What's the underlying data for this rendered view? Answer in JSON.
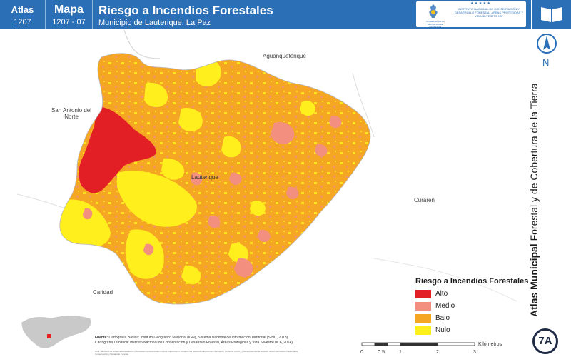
{
  "header": {
    "atlas_label": "Atlas",
    "atlas_number": "1207",
    "mapa_label": "Mapa",
    "mapa_number": "1207 - 07",
    "title": "Riesgo a Incendios Forestales",
    "subtitle": "Municipio de Lauterique, La Paz",
    "institution": "INSTITUTO NACIONAL DE CONSERVACIÓN Y DESARROLLO FORESTAL, ÁREAS PROTEGIDAS Y VIDA SILVESTRE ICF",
    "government": "GOBIERNO DE LA REPÚBLICA DE HONDURAS",
    "stars": "★ ★ ★ ★ ★"
  },
  "sidebar": {
    "title_bold": "Atlas Municipal",
    "title_rest": " Forestal y de Cobertura de la Tierra",
    "north_label": "N",
    "badge": "7A",
    "book_icon": "book-icon",
    "north_icon": "north-arrow-icon"
  },
  "places": {
    "aguanqueterique": "Aguanqueterique",
    "san_antonio": "San Antonio del Norte",
    "lauterique": "Lauterique",
    "curaren": "Curarén",
    "caridad": "Caridad"
  },
  "legend": {
    "title": "Riesgo a Incendios Forestales",
    "items": [
      {
        "label": "Alto",
        "color": "#e31f26"
      },
      {
        "label": "Medio",
        "color": "#f28f7f"
      },
      {
        "label": "Bajo",
        "color": "#f5a623"
      },
      {
        "label": "Nulo",
        "color": "#ffef1c"
      }
    ]
  },
  "footer": {
    "fuente_label": "Fuente:",
    "fuente_line1": "Cartografía Básica: Instituto Geográfico Nacional (IGN), Sistema Nacional de Información Territorial (SINIT, 2013)",
    "fuente_line2": "Cartografía Temática: Instituto Nacional de Conservación y Desarrollo Forestal, Áreas Protegidas y Vida Silvestre (ICF, 2014)",
    "nota": "Nota Técnica: Los límites administrativos y forestales representados en este mapa fueron tomados del Sistema Nacional de Información Territorial (SINIT) y no representan la posición oficial del Instituto Nacional de Conservación y Desarrollo Forestal."
  },
  "scale": {
    "ticks": [
      "0",
      "0.5",
      "1",
      "2",
      "3"
    ],
    "unit": "Kilómetros"
  },
  "colors": {
    "header_blue": "#2b6fb6",
    "alto": "#e31f26",
    "medio": "#f28f7f",
    "bajo": "#f5a623",
    "nulo": "#ffef1c"
  }
}
